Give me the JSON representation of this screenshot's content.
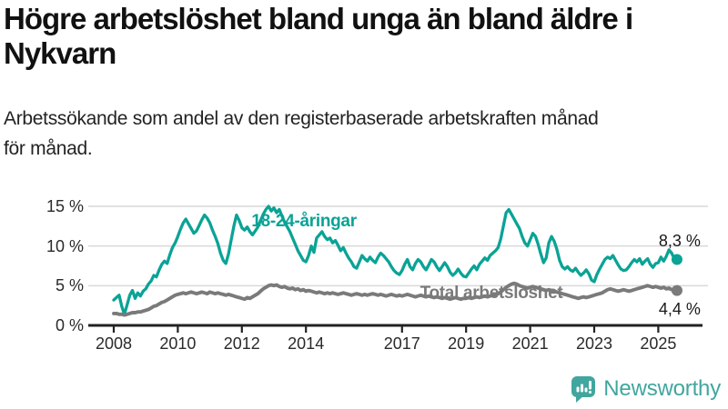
{
  "header": {
    "title_lines": [
      "Högre arbetslöshet bland unga än bland äldre i",
      "Nykvarn"
    ],
    "subtitle_lines": [
      "Arbetssökande som andel av den registerbaserade arbetskraften månad",
      "för månad."
    ]
  },
  "chart_data": {
    "type": "line",
    "title": "Högre arbetslöshet bland unga än bland äldre i Nykvarn",
    "subtitle": "Arbetssökande som andel av den registerbaserade arbetskraften månad för månad.",
    "x_start_year": 2008,
    "points_per_year": 12,
    "x_end": "2025-08",
    "ylim": [
      0,
      16
    ],
    "grid": true,
    "legend": "inline-labels",
    "yticks": [
      {
        "value": 0,
        "label": "0 %"
      },
      {
        "value": 5,
        "label": "5 %"
      },
      {
        "value": 10,
        "label": "10 %"
      },
      {
        "value": 15,
        "label": "15 %"
      }
    ],
    "xticks": [
      {
        "year": 2008,
        "label": "2008"
      },
      {
        "year": 2010,
        "label": "2010"
      },
      {
        "year": 2012,
        "label": "2012"
      },
      {
        "year": 2014,
        "label": "2014"
      },
      {
        "year": 2017,
        "label": "2017"
      },
      {
        "year": 2019,
        "label": "2019"
      },
      {
        "year": 2021,
        "label": "2021"
      },
      {
        "year": 2023,
        "label": "2023"
      },
      {
        "year": 2025,
        "label": "2025"
      }
    ],
    "series": [
      {
        "name": "18-24-åringar",
        "color": "#0aa396",
        "end_value": 8.3,
        "end_label": "8,3 %",
        "values": [
          3.2,
          3.5,
          3.8,
          2.4,
          1.4,
          2.6,
          3.8,
          4.4,
          3.4,
          4.1,
          3.7,
          4.3,
          4.6,
          5.2,
          5.6,
          6.3,
          6.1,
          7.0,
          7.7,
          8.1,
          7.8,
          8.9,
          9.8,
          10.4,
          11.2,
          12.1,
          12.9,
          13.4,
          12.8,
          12.2,
          11.6,
          11.9,
          12.6,
          13.3,
          13.9,
          13.5,
          12.9,
          12.0,
          11.2,
          10.3,
          9.1,
          8.2,
          7.8,
          9.0,
          10.8,
          12.5,
          13.9,
          13.2,
          12.3,
          12.0,
          12.4,
          11.8,
          11.4,
          11.9,
          12.4,
          13.2,
          14.0,
          14.6,
          15.0,
          14.4,
          14.8,
          14.2,
          14.6,
          13.8,
          13.0,
          12.4,
          11.8,
          11.0,
          10.2,
          9.4,
          8.8,
          8.2,
          8.0,
          8.8,
          10.0,
          9.2,
          11.0,
          11.4,
          11.8,
          11.2,
          10.8,
          11.0,
          10.4,
          10.7,
          10.1,
          9.4,
          9.8,
          9.1,
          8.5,
          8.0,
          7.4,
          7.2,
          8.0,
          8.8,
          8.4,
          8.1,
          8.6,
          8.2,
          7.9,
          8.6,
          9.1,
          8.8,
          8.4,
          8.0,
          7.4,
          6.9,
          6.6,
          6.4,
          6.9,
          7.7,
          8.3,
          7.4,
          7.0,
          7.8,
          8.3,
          8.0,
          7.4,
          7.0,
          7.6,
          8.3,
          8.0,
          7.4,
          6.9,
          7.4,
          7.9,
          7.4,
          6.7,
          6.3,
          6.6,
          7.1,
          6.6,
          6.2,
          6.1,
          6.6,
          7.1,
          7.5,
          7.0,
          7.7,
          8.1,
          8.5,
          8.2,
          8.8,
          9.1,
          9.4,
          9.8,
          10.9,
          12.6,
          14.2,
          14.6,
          14.0,
          13.4,
          12.8,
          12.2,
          11.2,
          10.4,
          10.0,
          10.8,
          11.6,
          11.2,
          10.2,
          9.0,
          7.9,
          8.5,
          10.4,
          11.2,
          10.6,
          9.6,
          8.2,
          7.4,
          7.1,
          7.4,
          7.0,
          6.8,
          7.2,
          6.7,
          6.3,
          6.6,
          7.0,
          6.5,
          5.7,
          5.5,
          6.4,
          7.1,
          7.7,
          8.3,
          8.6,
          8.4,
          8.8,
          8.2,
          7.6,
          7.1,
          6.9,
          7.0,
          7.4,
          7.9,
          8.3,
          8.0,
          8.4,
          7.7,
          8.1,
          8.4,
          7.7,
          7.3,
          7.8,
          7.9,
          8.6,
          8.1,
          8.7,
          9.5,
          9.1,
          8.4,
          8.3
        ]
      },
      {
        "name": "Total arbetslöshet",
        "color": "#7a7a7a",
        "end_value": 4.4,
        "end_label": "4,4 %",
        "values": [
          1.5,
          1.5,
          1.4,
          1.4,
          1.3,
          1.4,
          1.5,
          1.6,
          1.6,
          1.7,
          1.7,
          1.8,
          1.9,
          2.0,
          2.2,
          2.4,
          2.5,
          2.7,
          2.9,
          3.0,
          3.2,
          3.4,
          3.6,
          3.8,
          3.9,
          4.0,
          4.1,
          4.0,
          4.1,
          4.2,
          4.1,
          4.0,
          4.1,
          4.2,
          4.1,
          4.0,
          4.2,
          4.1,
          4.0,
          4.1,
          4.0,
          3.9,
          3.8,
          3.9,
          3.8,
          3.7,
          3.6,
          3.5,
          3.4,
          3.3,
          3.5,
          3.4,
          3.6,
          3.8,
          4.0,
          4.3,
          4.6,
          4.8,
          5.0,
          5.1,
          5.0,
          5.1,
          4.9,
          4.8,
          4.9,
          4.7,
          4.6,
          4.7,
          4.5,
          4.6,
          4.4,
          4.5,
          4.3,
          4.4,
          4.3,
          4.2,
          4.1,
          4.2,
          4.1,
          4.0,
          4.1,
          4.0,
          4.1,
          4.0,
          3.9,
          4.0,
          4.1,
          4.0,
          3.9,
          3.8,
          3.9,
          4.0,
          3.9,
          3.8,
          3.9,
          3.8,
          3.9,
          4.0,
          3.9,
          3.8,
          3.9,
          3.8,
          3.7,
          3.8,
          3.9,
          3.8,
          3.7,
          3.8,
          3.7,
          3.8,
          3.9,
          3.8,
          3.7,
          3.6,
          3.7,
          3.8,
          3.7,
          3.6,
          3.7,
          3.6,
          3.5,
          3.6,
          3.5,
          3.4,
          3.5,
          3.4,
          3.3,
          3.4,
          3.5,
          3.4,
          3.3,
          3.4,
          3.4,
          3.5,
          3.4,
          3.5,
          3.6,
          3.5,
          3.6,
          3.7,
          3.6,
          3.7,
          3.8,
          3.9,
          4.0,
          4.2,
          4.5,
          4.8,
          5.0,
          5.2,
          5.3,
          5.2,
          5.0,
          4.9,
          4.8,
          4.7,
          4.8,
          4.9,
          4.8,
          4.7,
          4.6,
          4.5,
          4.4,
          4.5,
          4.4,
          4.3,
          4.2,
          4.1,
          4.0,
          3.9,
          3.8,
          3.7,
          3.6,
          3.5,
          3.4,
          3.5,
          3.6,
          3.5,
          3.6,
          3.7,
          3.8,
          3.9,
          4.0,
          4.1,
          4.3,
          4.5,
          4.6,
          4.5,
          4.4,
          4.3,
          4.4,
          4.5,
          4.4,
          4.3,
          4.4,
          4.5,
          4.6,
          4.7,
          4.8,
          4.9,
          5.0,
          4.9,
          4.8,
          4.9,
          4.8,
          4.7,
          4.8,
          4.6,
          4.7,
          4.5,
          4.4,
          4.4
        ]
      }
    ],
    "annotations": [
      {
        "text": "18-24-åringar",
        "x_year": 2013.94,
        "y_value": 13.05,
        "color": "#0aa396"
      },
      {
        "text": "Total arbetslöshet",
        "x_year": 2019.79,
        "y_value": 4.0,
        "color": "#7a7a7a"
      }
    ],
    "colors": {
      "grid": "#d9d9d9",
      "axis": "#222222",
      "tick_text": "#2a2a2a",
      "value_label_text": "#1a1a1a"
    }
  },
  "footer": {
    "brand": "Newsworthy",
    "brand_color": "#41a69e",
    "logo_icon": "bar-chart-speech-bubble-icon"
  }
}
